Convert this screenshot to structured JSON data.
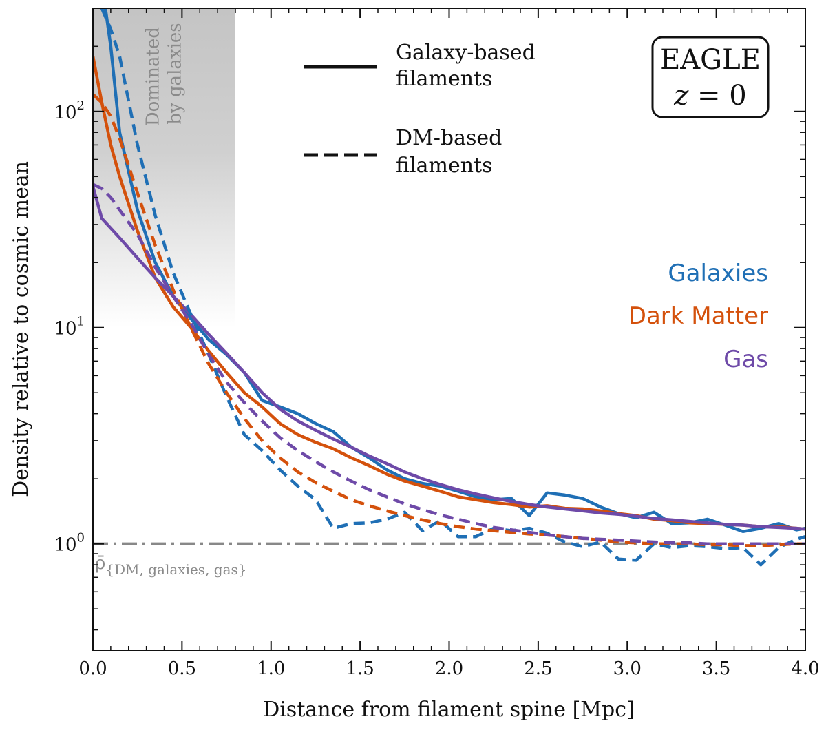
{
  "chart_data": {
    "type": "line",
    "xlabel": "Distance from filament spine [Mpc]",
    "ylabel": "Density relative to cosmic mean",
    "xlim": [
      0.0,
      4.0
    ],
    "ylim": [
      0.32,
      300
    ],
    "yscale": "log",
    "x_ticks": [
      0.0,
      0.5,
      1.0,
      1.5,
      2.0,
      2.5,
      3.0,
      3.5,
      4.0
    ],
    "x_tick_labels": [
      "0.0",
      "0.5",
      "1.0",
      "1.5",
      "2.0",
      "2.5",
      "3.0",
      "3.5",
      "4.0"
    ],
    "y_major_ticks": [
      {
        "value": 1,
        "base": "10",
        "exp": "0"
      },
      {
        "value": 10,
        "base": "10",
        "exp": "1"
      },
      {
        "value": 100,
        "base": "10",
        "exp": "2"
      }
    ],
    "shaded_region": {
      "x": [
        0.0,
        0.8
      ],
      "label_line1": "Dominated",
      "label_line2": "by galaxies"
    },
    "reference_line": {
      "y": 1.0,
      "color": "#888888",
      "style": "dash-dot",
      "label_main": "ρ̄",
      "label_sub": "{DM, galaxies, gas}"
    },
    "legend": [
      {
        "style": "solid",
        "line1": "Galaxy-based",
        "line2": "filaments"
      },
      {
        "style": "dashed",
        "line1": "DM-based",
        "line2": "filaments"
      }
    ],
    "info_box": {
      "line1": "EAGLE",
      "line2_var": "z",
      "line2_rest": " = 0"
    },
    "series_labels": [
      {
        "name": "Galaxies",
        "color": "#1f6fb5"
      },
      {
        "name": "Dark Matter",
        "color": "#d4510c"
      },
      {
        "name": "Gas",
        "color": "#6e4aa8"
      }
    ],
    "series": [
      {
        "name": "Galaxies (galaxy-based)",
        "color": "#1f6fb5",
        "style": "solid",
        "x": [
          0.07,
          0.1,
          0.15,
          0.25,
          0.35,
          0.45,
          0.55,
          0.65,
          0.75,
          0.85,
          0.95,
          1.05,
          1.15,
          1.25,
          1.35,
          1.45,
          1.55,
          1.65,
          1.75,
          1.85,
          1.95,
          2.05,
          2.15,
          2.25,
          2.35,
          2.45,
          2.55,
          2.65,
          2.75,
          2.85,
          2.95,
          3.05,
          3.15,
          3.25,
          3.35,
          3.45,
          3.55,
          3.65,
          3.75,
          3.85,
          3.95,
          4.0
        ],
        "y": [
          300,
          200,
          80,
          35,
          20,
          14,
          11,
          8.8,
          7.5,
          6.2,
          4.6,
          4.3,
          4.0,
          3.6,
          3.3,
          2.8,
          2.5,
          2.2,
          2.0,
          1.9,
          1.85,
          1.75,
          1.65,
          1.6,
          1.62,
          1.35,
          1.72,
          1.68,
          1.62,
          1.48,
          1.38,
          1.32,
          1.4,
          1.24,
          1.25,
          1.3,
          1.22,
          1.14,
          1.18,
          1.24,
          1.16,
          1.18
        ]
      },
      {
        "name": "Dark Matter (galaxy-based)",
        "color": "#d4510c",
        "style": "solid",
        "x": [
          0.0,
          0.05,
          0.1,
          0.15,
          0.25,
          0.35,
          0.45,
          0.55,
          0.65,
          0.75,
          0.85,
          0.95,
          1.05,
          1.15,
          1.25,
          1.35,
          1.45,
          1.55,
          1.65,
          1.75,
          1.85,
          1.95,
          2.05,
          2.15,
          2.25,
          2.35,
          2.45,
          2.55,
          2.65,
          2.75,
          2.85,
          2.95,
          3.05,
          3.15,
          3.25,
          3.35,
          3.45,
          3.55,
          3.65,
          3.75,
          3.85,
          3.95,
          4.0
        ],
        "y": [
          180,
          110,
          70,
          50,
          28,
          17,
          12.5,
          10,
          7.8,
          6.2,
          5.0,
          4.3,
          3.6,
          3.2,
          2.95,
          2.75,
          2.5,
          2.3,
          2.1,
          1.95,
          1.85,
          1.75,
          1.65,
          1.6,
          1.55,
          1.52,
          1.48,
          1.5,
          1.46,
          1.45,
          1.42,
          1.38,
          1.35,
          1.3,
          1.28,
          1.25,
          1.24,
          1.23,
          1.22,
          1.2,
          1.2,
          1.18,
          1.17
        ]
      },
      {
        "name": "Gas (galaxy-based)",
        "color": "#6e4aa8",
        "style": "solid",
        "x": [
          0.0,
          0.05,
          0.15,
          0.25,
          0.35,
          0.45,
          0.55,
          0.65,
          0.75,
          0.85,
          0.95,
          1.05,
          1.15,
          1.25,
          1.35,
          1.45,
          1.55,
          1.65,
          1.75,
          1.85,
          1.95,
          2.05,
          2.15,
          2.25,
          2.35,
          2.45,
          2.55,
          2.65,
          2.75,
          2.85,
          2.95,
          3.05,
          3.15,
          3.25,
          3.35,
          3.45,
          3.55,
          3.65,
          3.75,
          3.85,
          3.95,
          4.0
        ],
        "y": [
          45,
          32,
          26,
          21,
          17,
          14,
          11.5,
          9.3,
          7.6,
          6.2,
          5.0,
          4.2,
          3.7,
          3.35,
          3.05,
          2.8,
          2.55,
          2.35,
          2.15,
          2.0,
          1.88,
          1.78,
          1.7,
          1.63,
          1.57,
          1.52,
          1.48,
          1.45,
          1.42,
          1.39,
          1.37,
          1.34,
          1.31,
          1.29,
          1.27,
          1.25,
          1.23,
          1.22,
          1.2,
          1.19,
          1.18,
          1.17
        ]
      },
      {
        "name": "Galaxies (DM-based)",
        "color": "#1f6fb5",
        "style": "dashed",
        "x": [
          0.05,
          0.1,
          0.15,
          0.25,
          0.35,
          0.45,
          0.55,
          0.65,
          0.75,
          0.85,
          0.95,
          1.05,
          1.15,
          1.25,
          1.35,
          1.45,
          1.55,
          1.65,
          1.75,
          1.85,
          1.95,
          2.05,
          2.15,
          2.25,
          2.35,
          2.45,
          2.55,
          2.65,
          2.75,
          2.85,
          2.95,
          3.05,
          3.15,
          3.25,
          3.35,
          3.45,
          3.55,
          3.65,
          3.75,
          3.85,
          3.95,
          4.0
        ],
        "y": [
          300,
          240,
          180,
          70,
          33,
          18,
          11.5,
          7.5,
          4.8,
          3.2,
          2.7,
          2.2,
          1.85,
          1.6,
          1.18,
          1.24,
          1.25,
          1.3,
          1.4,
          1.15,
          1.28,
          1.08,
          1.08,
          1.18,
          1.15,
          1.18,
          1.12,
          1.02,
          0.97,
          1.02,
          0.85,
          0.84,
          1.0,
          0.96,
          0.98,
          0.97,
          0.95,
          0.96,
          0.8,
          0.96,
          1.05,
          1.08
        ]
      },
      {
        "name": "Dark Matter (DM-based)",
        "color": "#d4510c",
        "style": "dashed",
        "x": [
          0.0,
          0.05,
          0.1,
          0.15,
          0.25,
          0.35,
          0.45,
          0.55,
          0.65,
          0.75,
          0.85,
          0.95,
          1.05,
          1.15,
          1.25,
          1.35,
          1.45,
          1.55,
          1.65,
          1.75,
          1.85,
          1.95,
          2.05,
          2.15,
          2.25,
          2.35,
          2.45,
          2.55,
          2.65,
          2.75,
          2.85,
          2.95,
          3.05,
          3.15,
          3.25,
          3.35,
          3.45,
          3.55,
          3.65,
          3.75,
          3.85,
          3.95,
          4.0
        ],
        "y": [
          120,
          110,
          95,
          75,
          42,
          24,
          15,
          10,
          6.8,
          5.0,
          3.8,
          3.0,
          2.5,
          2.15,
          1.92,
          1.75,
          1.6,
          1.5,
          1.42,
          1.35,
          1.29,
          1.24,
          1.2,
          1.17,
          1.15,
          1.13,
          1.11,
          1.1,
          1.08,
          1.06,
          1.04,
          1.02,
          1.01,
          1.0,
          1.0,
          1.0,
          0.99,
          0.99,
          0.98,
          0.98,
          0.99,
          1.0,
          1.0
        ]
      },
      {
        "name": "Gas (DM-based)",
        "color": "#6e4aa8",
        "style": "dashed",
        "x": [
          0.0,
          0.05,
          0.1,
          0.15,
          0.25,
          0.35,
          0.45,
          0.55,
          0.65,
          0.75,
          0.85,
          0.95,
          1.05,
          1.15,
          1.25,
          1.35,
          1.45,
          1.55,
          1.65,
          1.75,
          1.85,
          1.95,
          2.05,
          2.15,
          2.25,
          2.35,
          2.45,
          2.55,
          2.65,
          2.75,
          2.85,
          2.95,
          3.05,
          3.15,
          3.25,
          3.35,
          3.45,
          3.55,
          3.65,
          3.75,
          3.85,
          3.95,
          4.0
        ],
        "y": [
          46,
          44,
          40,
          35,
          27,
          19,
          14,
          10.5,
          7.5,
          5.6,
          4.5,
          3.7,
          3.1,
          2.7,
          2.4,
          2.15,
          1.95,
          1.78,
          1.65,
          1.53,
          1.44,
          1.36,
          1.3,
          1.24,
          1.19,
          1.16,
          1.13,
          1.1,
          1.08,
          1.06,
          1.05,
          1.04,
          1.03,
          1.02,
          1.01,
          1.01,
          1.0,
          1.0,
          1.0,
          1.0,
          1.0,
          1.0,
          1.0
        ]
      }
    ]
  }
}
